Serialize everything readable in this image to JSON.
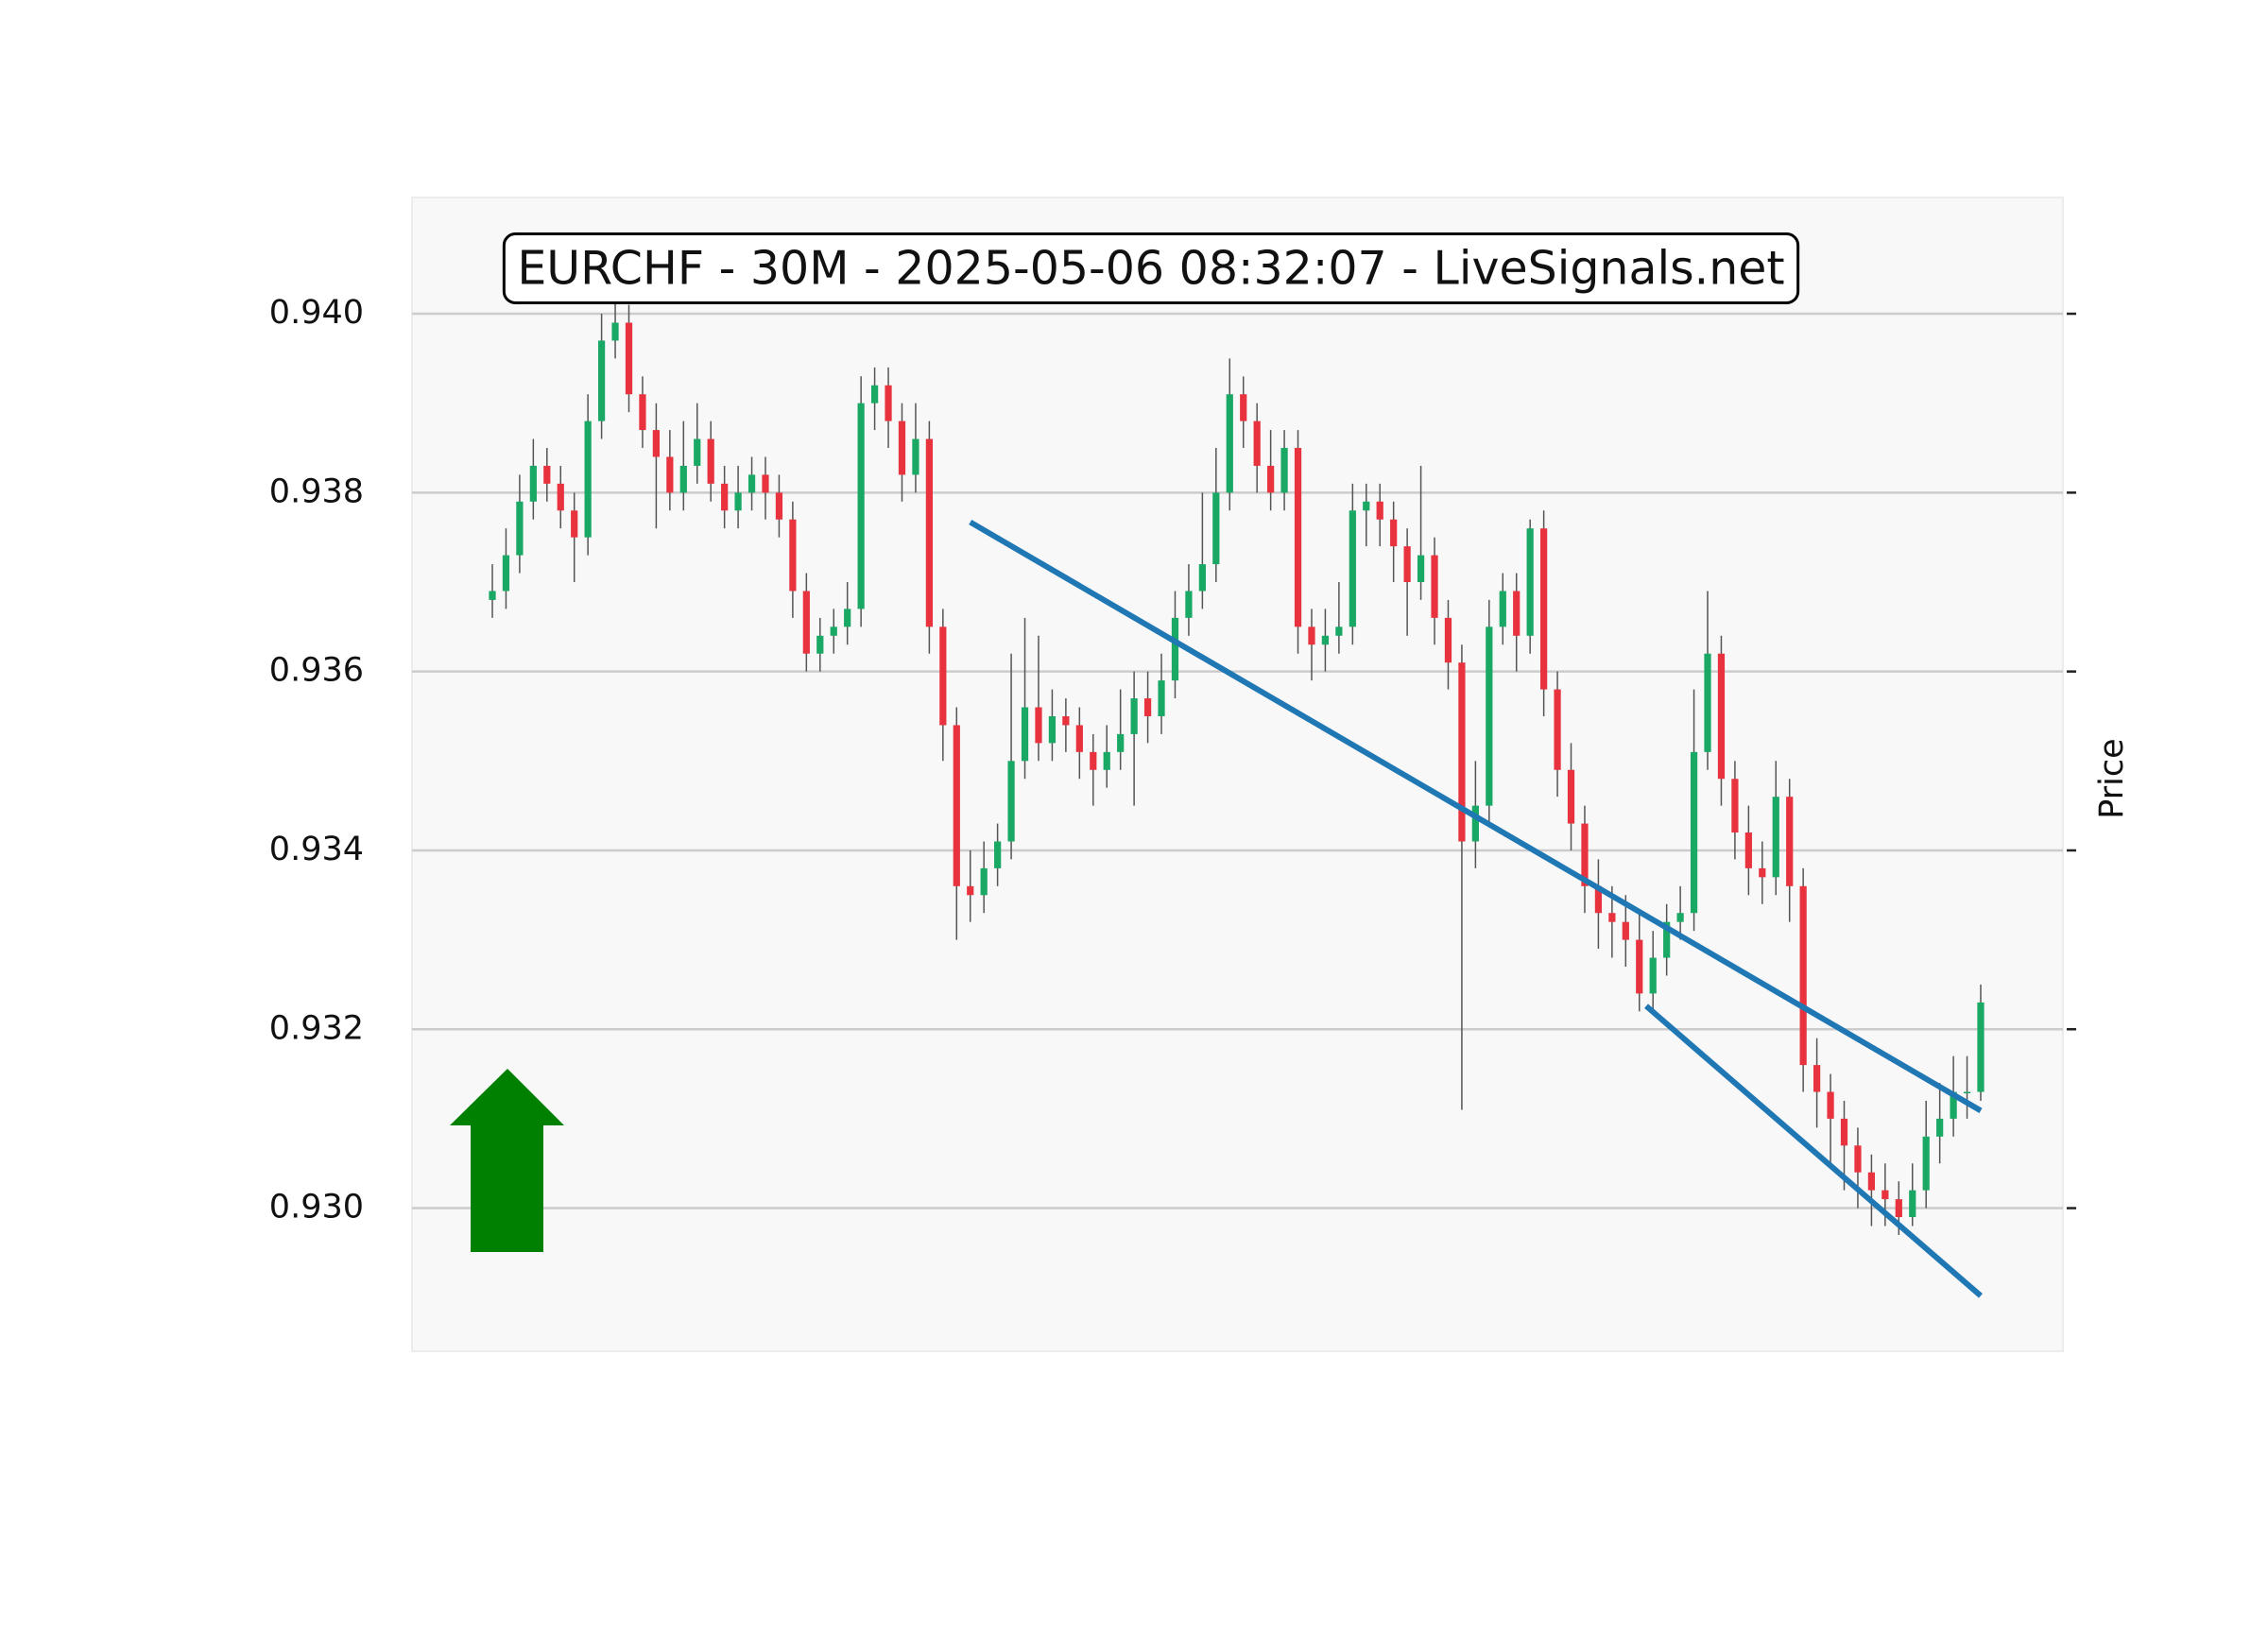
{
  "chart_data": {
    "type": "candlestick",
    "title": "EURCHF - 30M - 2025-05-06 08:32:07 - LiveSignals.net",
    "y_label": "Price",
    "ylim": [
      0.9284,
      0.9413
    ],
    "yticks": [
      {
        "value": 0.93,
        "label": "0.930"
      },
      0.932,
      0.934,
      0.936,
      0.938,
      {
        "value": 0.94,
        "label": "0.940"
      }
    ],
    "grid": true,
    "up_color": "#1aa865",
    "down_color": "#e8333f",
    "wick_color": "#555555",
    "open": [
      0.9368,
      0.9369,
      0.9373,
      0.9379,
      0.9383,
      0.9381,
      0.9378,
      0.9375,
      0.9388,
      0.9397,
      0.9399,
      0.9391,
      0.9387,
      0.9384,
      0.938,
      0.9383,
      0.9386,
      0.9381,
      0.9378,
      0.938,
      0.9382,
      0.938,
      0.9377,
      0.9369,
      0.9362,
      0.9364,
      0.9365,
      0.9367,
      0.939,
      0.9392,
      0.9388,
      0.9382,
      0.9386,
      0.9365,
      0.9354,
      0.9336,
      0.9335,
      0.9338,
      0.9341,
      0.935,
      0.9356,
      0.9352,
      0.9355,
      0.9354,
      0.9351,
      0.9349,
      0.9351,
      0.9353,
      0.9357,
      0.9355,
      0.9359,
      0.9366,
      0.9369,
      0.9372,
      0.938,
      0.9391,
      0.9388,
      0.9383,
      0.938,
      0.9385,
      0.9365,
      0.9363,
      0.9364,
      0.9365,
      0.9378,
      0.9379,
      0.9377,
      0.9374,
      0.937,
      0.9373,
      0.9366,
      0.9361,
      0.9341,
      0.9345,
      0.9365,
      0.9369,
      0.9364,
      0.9376,
      0.9358,
      0.9349,
      0.9343,
      0.9336,
      0.9333,
      0.9332,
      0.933,
      0.9324,
      0.9328,
      0.9332,
      0.9333,
      0.9351,
      0.9362,
      0.9348,
      0.9342,
      0.9338,
      0.9337,
      0.9346,
      0.9336,
      0.9316,
      0.9313,
      0.931,
      0.9307,
      0.9304,
      0.9302,
      0.9301,
      0.9299,
      0.9302,
      0.9308,
      0.931,
      0.9313,
      0.9313
    ],
    "high": [
      0.9372,
      0.9376,
      0.9382,
      0.9386,
      0.9385,
      0.9383,
      0.938,
      0.9391,
      0.94,
      0.9402,
      0.9401,
      0.9393,
      0.939,
      0.9387,
      0.9388,
      0.939,
      0.9388,
      0.9383,
      0.9383,
      0.9384,
      0.9384,
      0.9382,
      0.9379,
      0.9371,
      0.9366,
      0.9367,
      0.937,
      0.9393,
      0.9394,
      0.9394,
      0.939,
      0.939,
      0.9388,
      0.9367,
      0.9356,
      0.934,
      0.9341,
      0.9343,
      0.9362,
      0.9366,
      0.9364,
      0.9358,
      0.9357,
      0.9356,
      0.9353,
      0.9354,
      0.9358,
      0.936,
      0.936,
      0.9362,
      0.9369,
      0.9372,
      0.938,
      0.9385,
      0.9395,
      0.9393,
      0.939,
      0.9387,
      0.9387,
      0.9387,
      0.9367,
      0.9367,
      0.937,
      0.9381,
      0.9381,
      0.9381,
      0.9379,
      0.9376,
      0.9383,
      0.9375,
      0.9368,
      0.9363,
      0.935,
      0.9368,
      0.9371,
      0.9371,
      0.9377,
      0.9378,
      0.936,
      0.9352,
      0.9345,
      0.9339,
      0.9336,
      0.9335,
      0.9333,
      0.9331,
      0.9334,
      0.9336,
      0.9358,
      0.9369,
      0.9364,
      0.935,
      0.9345,
      0.9341,
      0.935,
      0.9348,
      0.9338,
      0.9319,
      0.9315,
      0.9312,
      0.9309,
      0.9306,
      0.9305,
      0.9303,
      0.9305,
      0.9312,
      0.9314,
      0.9317,
      0.9317,
      0.9325
    ],
    "low": [
      0.9366,
      0.9367,
      0.9371,
      0.9377,
      0.9379,
      0.9376,
      0.937,
      0.9373,
      0.9386,
      0.9395,
      0.9389,
      0.9385,
      0.9376,
      0.9378,
      0.9378,
      0.9381,
      0.9379,
      0.9376,
      0.9376,
      0.9378,
      0.9377,
      0.9375,
      0.9366,
      0.936,
      0.936,
      0.9362,
      0.9363,
      0.9365,
      0.9387,
      0.9385,
      0.9379,
      0.938,
      0.9362,
      0.935,
      0.933,
      0.9332,
      0.9333,
      0.9336,
      0.9339,
      0.9348,
      0.935,
      0.935,
      0.9351,
      0.9348,
      0.9345,
      0.9347,
      0.9349,
      0.9345,
      0.9352,
      0.9353,
      0.9357,
      0.9364,
      0.9367,
      0.937,
      0.9378,
      0.9385,
      0.938,
      0.9378,
      0.9378,
      0.9362,
      0.9359,
      0.936,
      0.9362,
      0.9363,
      0.9374,
      0.9374,
      0.937,
      0.9364,
      0.9368,
      0.9363,
      0.9358,
      0.9311,
      0.9338,
      0.9343,
      0.9363,
      0.936,
      0.9362,
      0.9355,
      0.9346,
      0.934,
      0.9333,
      0.9329,
      0.9328,
      0.9327,
      0.9322,
      0.9322,
      0.9326,
      0.933,
      0.9331,
      0.9349,
      0.9345,
      0.9339,
      0.9335,
      0.9334,
      0.9335,
      0.9332,
      0.9313,
      0.9309,
      0.9305,
      0.9302,
      0.93,
      0.9298,
      0.9298,
      0.9297,
      0.9298,
      0.93,
      0.9305,
      0.9308,
      0.931,
      0.9312
    ],
    "close": [
      0.9369,
      0.9373,
      0.9379,
      0.9383,
      0.9381,
      0.9378,
      0.9375,
      0.9388,
      0.9397,
      0.9399,
      0.9391,
      0.9387,
      0.9384,
      0.938,
      0.9383,
      0.9386,
      0.9381,
      0.9378,
      0.938,
      0.9382,
      0.938,
      0.9377,
      0.9369,
      0.9362,
      0.9364,
      0.9365,
      0.9367,
      0.939,
      0.9392,
      0.9388,
      0.9382,
      0.9386,
      0.9365,
      0.9354,
      0.9336,
      0.9335,
      0.9338,
      0.9341,
      0.935,
      0.9356,
      0.9352,
      0.9355,
      0.9354,
      0.9351,
      0.9349,
      0.9351,
      0.9353,
      0.9357,
      0.9355,
      0.9359,
      0.9366,
      0.9369,
      0.9372,
      0.938,
      0.9391,
      0.9388,
      0.9383,
      0.938,
      0.9385,
      0.9365,
      0.9363,
      0.9364,
      0.9365,
      0.9378,
      0.9379,
      0.9377,
      0.9374,
      0.937,
      0.9373,
      0.9366,
      0.9361,
      0.9341,
      0.9345,
      0.9365,
      0.9369,
      0.9364,
      0.9376,
      0.9358,
      0.9349,
      0.9343,
      0.9336,
      0.9333,
      0.9332,
      0.933,
      0.9324,
      0.9328,
      0.9332,
      0.9333,
      0.9351,
      0.9362,
      0.9348,
      0.9342,
      0.9338,
      0.9337,
      0.9346,
      0.9336,
      0.9316,
      0.9313,
      0.931,
      0.9307,
      0.9304,
      0.9302,
      0.9301,
      0.9299,
      0.9302,
      0.9308,
      0.931,
      0.9313,
      0.9313,
      0.9323
    ],
    "trendlines": [
      {
        "color": "#1f77b4",
        "x": [
          35,
          109
        ],
        "y": [
          0.93767,
          0.93109
        ]
      },
      {
        "color": "#1f77b4",
        "x": [
          84.5,
          109
        ],
        "y": [
          0.93226,
          0.92902
        ]
      }
    ],
    "signal_color": "#008000"
  }
}
